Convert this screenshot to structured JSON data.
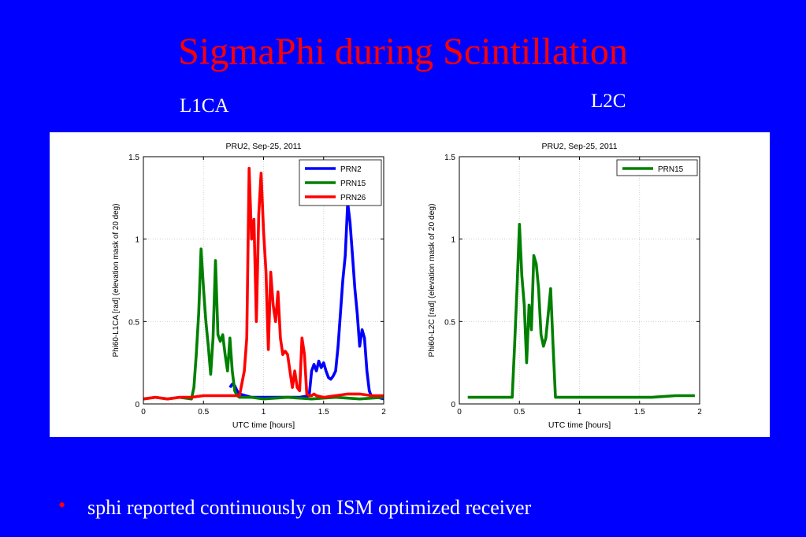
{
  "slide": {
    "title": "SigmaPhi during Scintillation",
    "subtitle_left": "L1CA",
    "subtitle_right": "L2C",
    "bullet": "sphi reported continuously on ISM optimized receiver",
    "colors": {
      "background": "#0000ff",
      "title": "#ff0000",
      "text": "#ffffff"
    }
  },
  "chart_data": [
    {
      "type": "line",
      "title": "PRU2, Sep-25, 2011",
      "xlabel": "UTC time [hours]",
      "ylabel": "Phi60-L1CA [rad] (elevation mask of 20 deg)",
      "xlim": [
        0,
        2
      ],
      "ylim": [
        0,
        1.5
      ],
      "xticks": [
        0,
        0.5,
        1,
        1.5,
        2
      ],
      "xtick_labels": [
        "0",
        "0.5",
        "1",
        "1.5",
        "2"
      ],
      "yticks": [
        0,
        0.5,
        1,
        1.5
      ],
      "ytick_labels": [
        "0",
        "0.5",
        "1",
        "1.5"
      ],
      "grid": true,
      "legend_position": "top-right",
      "series": [
        {
          "name": "PRN2",
          "color": "#0000ff",
          "x": [
            0.72,
            0.74,
            0.76,
            0.78,
            0.8,
            0.85,
            0.9,
            1.0,
            1.1,
            1.2,
            1.3,
            1.38,
            1.4,
            1.42,
            1.44,
            1.46,
            1.48,
            1.5,
            1.52,
            1.54,
            1.56,
            1.58,
            1.6,
            1.62,
            1.64,
            1.66,
            1.68,
            1.7,
            1.72,
            1.74,
            1.76,
            1.78,
            1.8,
            1.82,
            1.84,
            1.86,
            1.88,
            1.9,
            1.95,
            2.0
          ],
          "values": [
            0.1,
            0.12,
            0.11,
            0.08,
            0.06,
            0.05,
            0.04,
            0.04,
            0.04,
            0.04,
            0.04,
            0.05,
            0.2,
            0.24,
            0.2,
            0.26,
            0.22,
            0.25,
            0.2,
            0.16,
            0.15,
            0.17,
            0.2,
            0.35,
            0.55,
            0.75,
            0.9,
            1.22,
            1.1,
            0.9,
            0.7,
            0.55,
            0.35,
            0.45,
            0.4,
            0.2,
            0.08,
            0.04,
            0.04,
            0.03
          ]
        },
        {
          "name": "PRN15",
          "color": "#008000",
          "x": [
            0.0,
            0.1,
            0.2,
            0.3,
            0.4,
            0.42,
            0.44,
            0.46,
            0.48,
            0.5,
            0.52,
            0.54,
            0.56,
            0.58,
            0.6,
            0.62,
            0.64,
            0.66,
            0.68,
            0.7,
            0.72,
            0.74,
            0.76,
            0.78,
            0.8,
            0.9,
            1.0,
            1.2,
            1.4,
            1.6,
            1.8,
            2.0
          ],
          "values": [
            0.03,
            0.04,
            0.03,
            0.04,
            0.03,
            0.1,
            0.3,
            0.55,
            0.94,
            0.7,
            0.5,
            0.35,
            0.18,
            0.4,
            0.87,
            0.42,
            0.38,
            0.42,
            0.3,
            0.2,
            0.4,
            0.2,
            0.08,
            0.05,
            0.04,
            0.04,
            0.03,
            0.04,
            0.03,
            0.04,
            0.03,
            0.04
          ]
        },
        {
          "name": "PRN26",
          "color": "#ff0000",
          "x": [
            0.0,
            0.1,
            0.2,
            0.3,
            0.4,
            0.5,
            0.6,
            0.7,
            0.8,
            0.84,
            0.86,
            0.88,
            0.9,
            0.92,
            0.94,
            0.96,
            0.98,
            1.0,
            1.02,
            1.04,
            1.06,
            1.08,
            1.1,
            1.12,
            1.14,
            1.16,
            1.18,
            1.2,
            1.22,
            1.24,
            1.26,
            1.28,
            1.3,
            1.32,
            1.34,
            1.36,
            1.38,
            1.4,
            1.42,
            1.44,
            1.5,
            1.6,
            1.7,
            1.8,
            1.9,
            2.0
          ],
          "values": [
            0.03,
            0.04,
            0.03,
            0.04,
            0.04,
            0.05,
            0.05,
            0.05,
            0.05,
            0.2,
            0.4,
            1.43,
            1.0,
            1.12,
            0.5,
            1.15,
            1.4,
            1.05,
            0.8,
            0.33,
            0.8,
            0.6,
            0.5,
            0.68,
            0.4,
            0.3,
            0.32,
            0.3,
            0.2,
            0.1,
            0.2,
            0.1,
            0.08,
            0.4,
            0.3,
            0.06,
            0.05,
            0.05,
            0.06,
            0.05,
            0.04,
            0.05,
            0.06,
            0.06,
            0.05,
            0.05
          ]
        }
      ]
    },
    {
      "type": "line",
      "title": "PRU2, Sep-25, 2011",
      "xlabel": "UTC time [hours]",
      "ylabel": "Phi60-L2C [rad] (elevation mask of 20 deg)",
      "xlim": [
        0,
        2
      ],
      "ylim": [
        0,
        1.5
      ],
      "xticks": [
        0,
        0.5,
        1,
        1.5,
        2
      ],
      "xtick_labels": [
        "0",
        "0.5",
        "1",
        "1.5",
        "2"
      ],
      "yticks": [
        0,
        0.5,
        1,
        1.5
      ],
      "ytick_labels": [
        "0",
        "0.5",
        "1",
        "1.5"
      ],
      "grid": true,
      "legend_position": "top-right",
      "series": [
        {
          "name": "PRN15",
          "color": "#008000",
          "x": [
            0.07,
            0.15,
            0.2,
            0.3,
            0.4,
            0.44,
            0.46,
            0.48,
            0.5,
            0.52,
            0.54,
            0.56,
            0.58,
            0.6,
            0.62,
            0.64,
            0.66,
            0.68,
            0.7,
            0.72,
            0.74,
            0.76,
            0.78,
            0.8,
            0.9,
            1.0,
            1.2,
            1.4,
            1.6,
            1.8,
            1.96
          ],
          "values": [
            0.04,
            0.04,
            0.04,
            0.04,
            0.04,
            0.04,
            0.35,
            0.7,
            1.09,
            0.78,
            0.6,
            0.25,
            0.6,
            0.45,
            0.9,
            0.85,
            0.7,
            0.42,
            0.35,
            0.4,
            0.55,
            0.7,
            0.35,
            0.04,
            0.04,
            0.04,
            0.04,
            0.04,
            0.04,
            0.05,
            0.05
          ]
        }
      ]
    }
  ]
}
